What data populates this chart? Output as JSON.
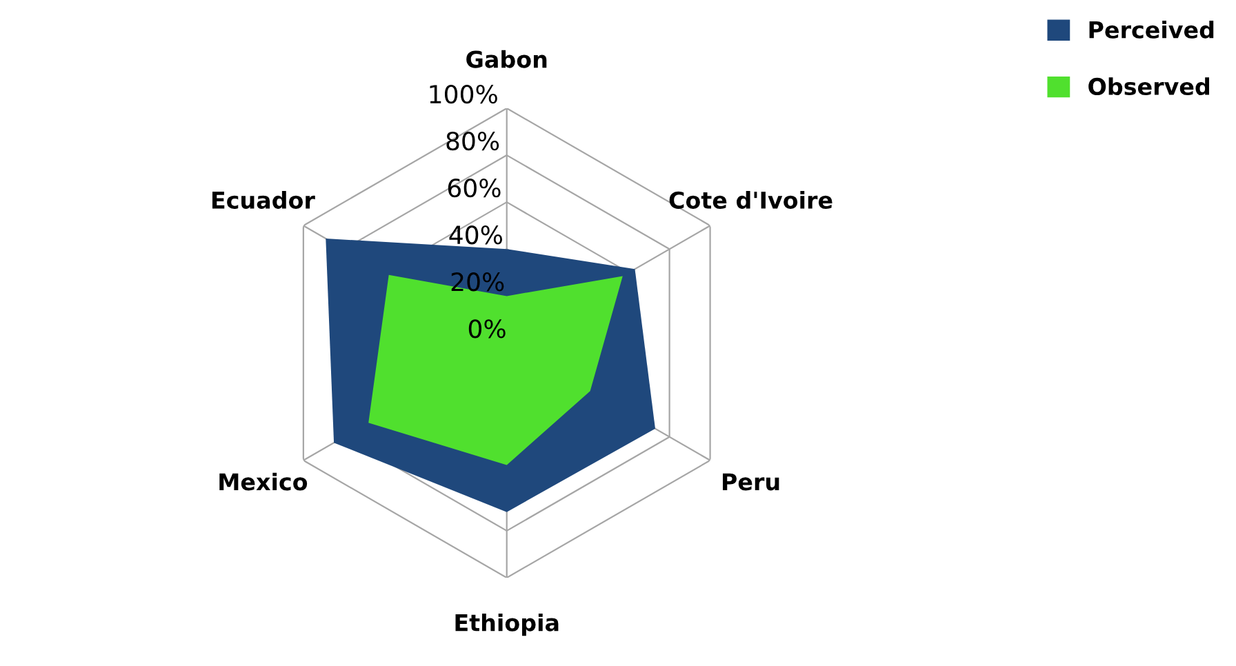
{
  "chart_data": {
    "type": "radar",
    "categories": [
      "Gabon",
      "Cote d'Ivoire",
      "Peru",
      "Ethiopia",
      "Mexico",
      "Ecuador"
    ],
    "series": [
      {
        "name": "Perceived",
        "color": "#1f487c",
        "values": [
          40,
          63,
          73,
          72,
          85,
          89
        ]
      },
      {
        "name": "Observed",
        "color": "#50e02e",
        "values": [
          20,
          57,
          41,
          52,
          68,
          58
        ]
      }
    ],
    "ylim": [
      0,
      100
    ],
    "yticks": [
      {
        "value": 0,
        "label": "0%"
      },
      {
        "value": 20,
        "label": "20%"
      },
      {
        "value": 40,
        "label": "40%"
      },
      {
        "value": 60,
        "label": "60%"
      },
      {
        "value": 80,
        "label": "80%"
      },
      {
        "value": 100,
        "label": "100%"
      }
    ],
    "grid": true,
    "legend": "top right"
  }
}
